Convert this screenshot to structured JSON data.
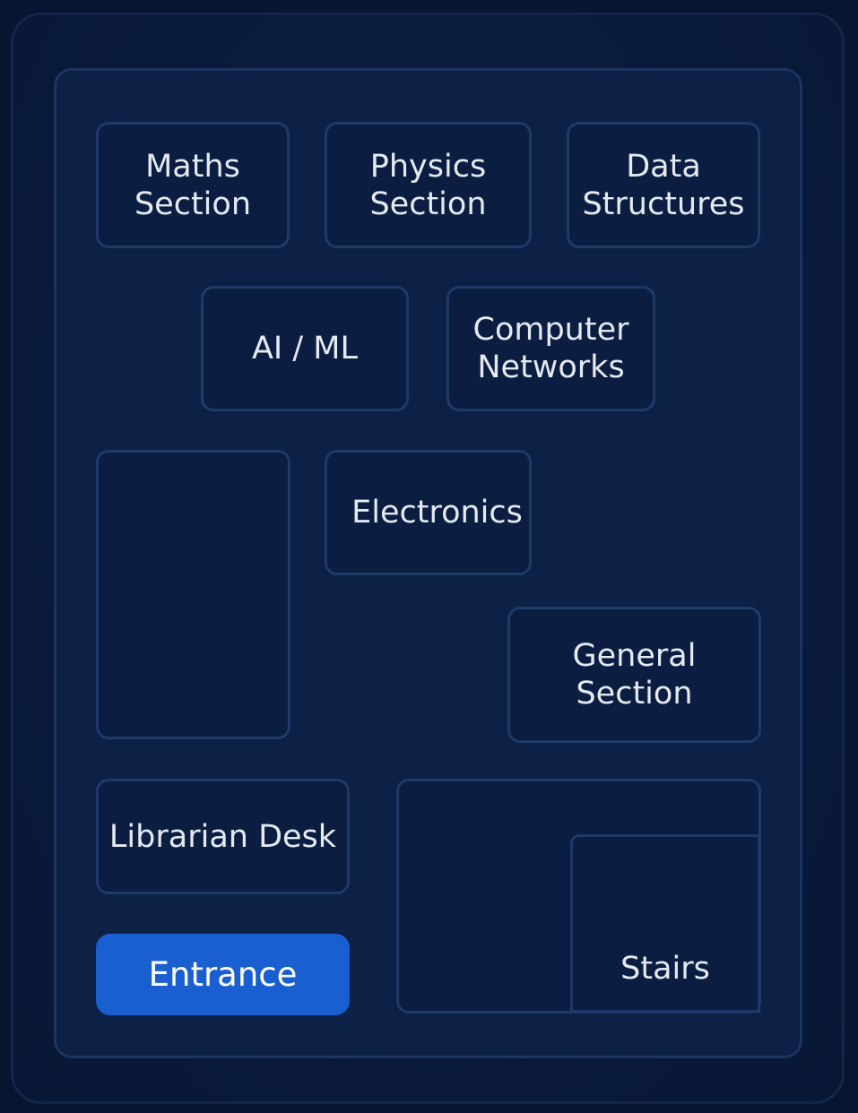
{
  "rooms": {
    "maths": "Maths\nSection",
    "physics": "Physics\nSection",
    "data_structures": "Data\nStructures",
    "ai_ml": "AI / ML",
    "computer_networks": "Computer\nNetworks",
    "electronics": "Electronics",
    "general": "General\nSection",
    "librarian_desk": "Librarian Desk",
    "entrance": "Entrance",
    "stairs": "Stairs"
  },
  "colors": {
    "background": "#071530",
    "floor": "#0d2146",
    "room_fill": "#0b1d40",
    "room_border": "#1e3a68",
    "entrance": "#1a5fcf",
    "text": "#e4e9f2"
  }
}
